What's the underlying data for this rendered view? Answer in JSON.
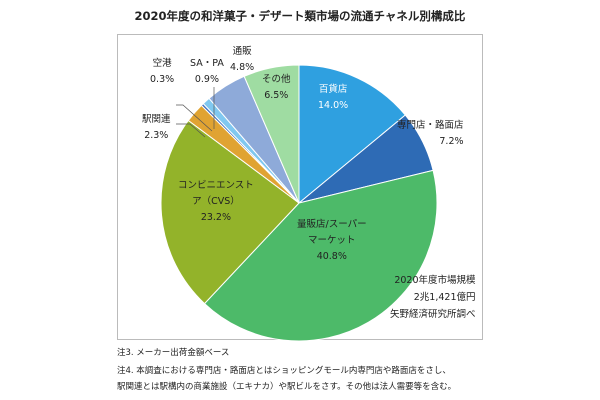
{
  "chart_data": {
    "type": "pie",
    "title": "2020年度の和洋菓子・デザート類市場の流通チャネル別構成比",
    "slices": [
      {
        "label": "百貨店",
        "value": 14.0,
        "display": "14.0%",
        "color": "#2fa0e0"
      },
      {
        "label": "専門店・路面店",
        "value": 7.2,
        "display": "7.2%",
        "color": "#2e6bb5"
      },
      {
        "label": "量販店/スーパーマーケット",
        "value": 40.8,
        "display": "40.8%",
        "color": "#4dba69"
      },
      {
        "label": "コンビニエンスストア（CVS）",
        "value": 23.2,
        "display": "23.2%",
        "color": "#93b32a"
      },
      {
        "label": "駅関連",
        "value": 2.3,
        "display": "2.3%",
        "color": "#e0a332"
      },
      {
        "label": "空港",
        "value": 0.3,
        "display": "0.3%",
        "color": "#4a78c0"
      },
      {
        "label": "SA・PA",
        "value": 0.9,
        "display": "0.9%",
        "color": "#80c8f0"
      },
      {
        "label": "通販",
        "value": 4.8,
        "display": "4.8%",
        "color": "#8eaad9"
      },
      {
        "label": "その他",
        "value": 6.5,
        "display": "6.5%",
        "color": "#9fdca2"
      }
    ],
    "start_angle": "top",
    "direction": "clockwise"
  },
  "annotation": {
    "market_label": "2020年度市場規模",
    "market_value": "2兆1,421億円",
    "source": "矢野経済研究所調べ"
  },
  "labels": {
    "cvs_line1": "コンビニエンスト",
    "cvs_line2": "ア（CVS）",
    "mass_line1": "量販店/スーパー",
    "mass_line2": "マーケット"
  },
  "notes": [
    "注3. メーカー出荷金額ベース",
    "注4. 本調査における専門店・路面店とはショッピングモール内専門店や路面店をさし、",
    "駅関連とは駅構内の商業施設（エキナカ）や駅ビルをさす。その他は法人需要等を含む。"
  ]
}
